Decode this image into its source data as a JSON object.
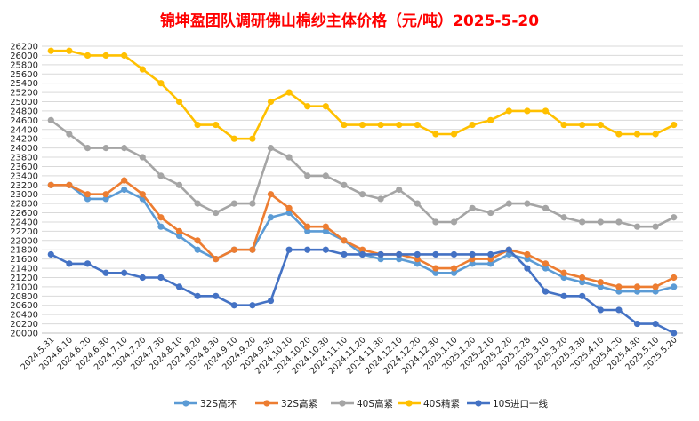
{
  "chart_data": {
    "type": "line",
    "title": "锦坤盈团队调研佛山棉纱主体价格（元/吨）2025-5-20",
    "xlabel": "",
    "ylabel": "",
    "ylim": [
      20000,
      26200
    ],
    "y_ticks": [
      20000,
      20200,
      20400,
      20600,
      20800,
      21000,
      21200,
      21400,
      21600,
      21800,
      22000,
      22200,
      22400,
      22600,
      22800,
      23000,
      23200,
      23400,
      23600,
      23800,
      24000,
      24200,
      24400,
      24600,
      24800,
      25000,
      25200,
      25400,
      25600,
      25800,
      26000,
      26200
    ],
    "x": [
      "2024.5.31",
      "2024.6.10",
      "2024.6.20",
      "2024.6.30",
      "2024.7.10",
      "2024.7.20",
      "2024.7.30",
      "2024.8.10",
      "2024.8.20",
      "2024.8.30",
      "2024.9.10",
      "2024.9.20",
      "2024.9.30",
      "2024.10.10",
      "2024.10.20",
      "2024.10.30",
      "2024.11.10",
      "2024.11.20",
      "2024.11.30",
      "2024.12.10",
      "2024.12.20",
      "2024.12.30",
      "2025.1.10",
      "2025.1.20",
      "2025.2.10",
      "2025.2.20",
      "2025.2.28",
      "2025.3.10",
      "2025.3.20",
      "2025.3.30",
      "2025.4.10",
      "2025.4.20",
      "2025.4.30",
      "2025.5.10",
      "2025.5.20"
    ],
    "grid": true,
    "legend_position": "bottom",
    "series": [
      {
        "name": "32S高环",
        "color": "#5b9bd5",
        "values": [
          23200,
          23200,
          22900,
          22900,
          23100,
          22900,
          22300,
          22100,
          21800,
          21600,
          21800,
          21800,
          22500,
          22600,
          22200,
          22200,
          22000,
          21700,
          21600,
          21600,
          21500,
          21300,
          21300,
          21500,
          21500,
          21700,
          21600,
          21400,
          21200,
          21100,
          21000,
          20900,
          20900,
          20900,
          21000
        ]
      },
      {
        "name": "32S高紧",
        "color": "#ed7d31",
        "values": [
          23200,
          23200,
          23000,
          23000,
          23300,
          23000,
          22500,
          22200,
          22000,
          21600,
          21800,
          21800,
          23000,
          22700,
          22300,
          22300,
          22000,
          21800,
          21700,
          21700,
          21600,
          21400,
          21400,
          21600,
          21600,
          21800,
          21700,
          21500,
          21300,
          21200,
          21100,
          21000,
          21000,
          21000,
          21200
        ]
      },
      {
        "name": "40S高紧",
        "color": "#a5a5a5",
        "values": [
          24600,
          24300,
          24000,
          24000,
          24000,
          23800,
          23400,
          23200,
          22800,
          22600,
          22800,
          22800,
          24000,
          23800,
          23400,
          23400,
          23200,
          23000,
          22900,
          23100,
          22800,
          22400,
          22400,
          22700,
          22600,
          22800,
          22800,
          22700,
          22500,
          22400,
          22400,
          22400,
          22300,
          22300,
          22500
        ]
      },
      {
        "name": "40S精紧",
        "color": "#ffc000",
        "values": [
          26100,
          26100,
          26000,
          26000,
          26000,
          25700,
          25400,
          25000,
          24500,
          24500,
          24200,
          24200,
          25000,
          25200,
          24900,
          24900,
          24500,
          24500,
          24500,
          24500,
          24500,
          24300,
          24300,
          24500,
          24600,
          24800,
          24800,
          24800,
          24500,
          24500,
          24500,
          24300,
          24300,
          24300,
          24500
        ]
      },
      {
        "name": "10S进口一线",
        "color": "#4472c4",
        "values": [
          21700,
          21500,
          21500,
          21300,
          21300,
          21200,
          21200,
          21000,
          20800,
          20800,
          20600,
          20600,
          20700,
          21800,
          21800,
          21800,
          21700,
          21700,
          21700,
          21700,
          21700,
          21700,
          21700,
          21700,
          21700,
          21800,
          21400,
          20900,
          20800,
          20800,
          20500,
          20500,
          20200,
          20200,
          20000
        ]
      }
    ]
  }
}
